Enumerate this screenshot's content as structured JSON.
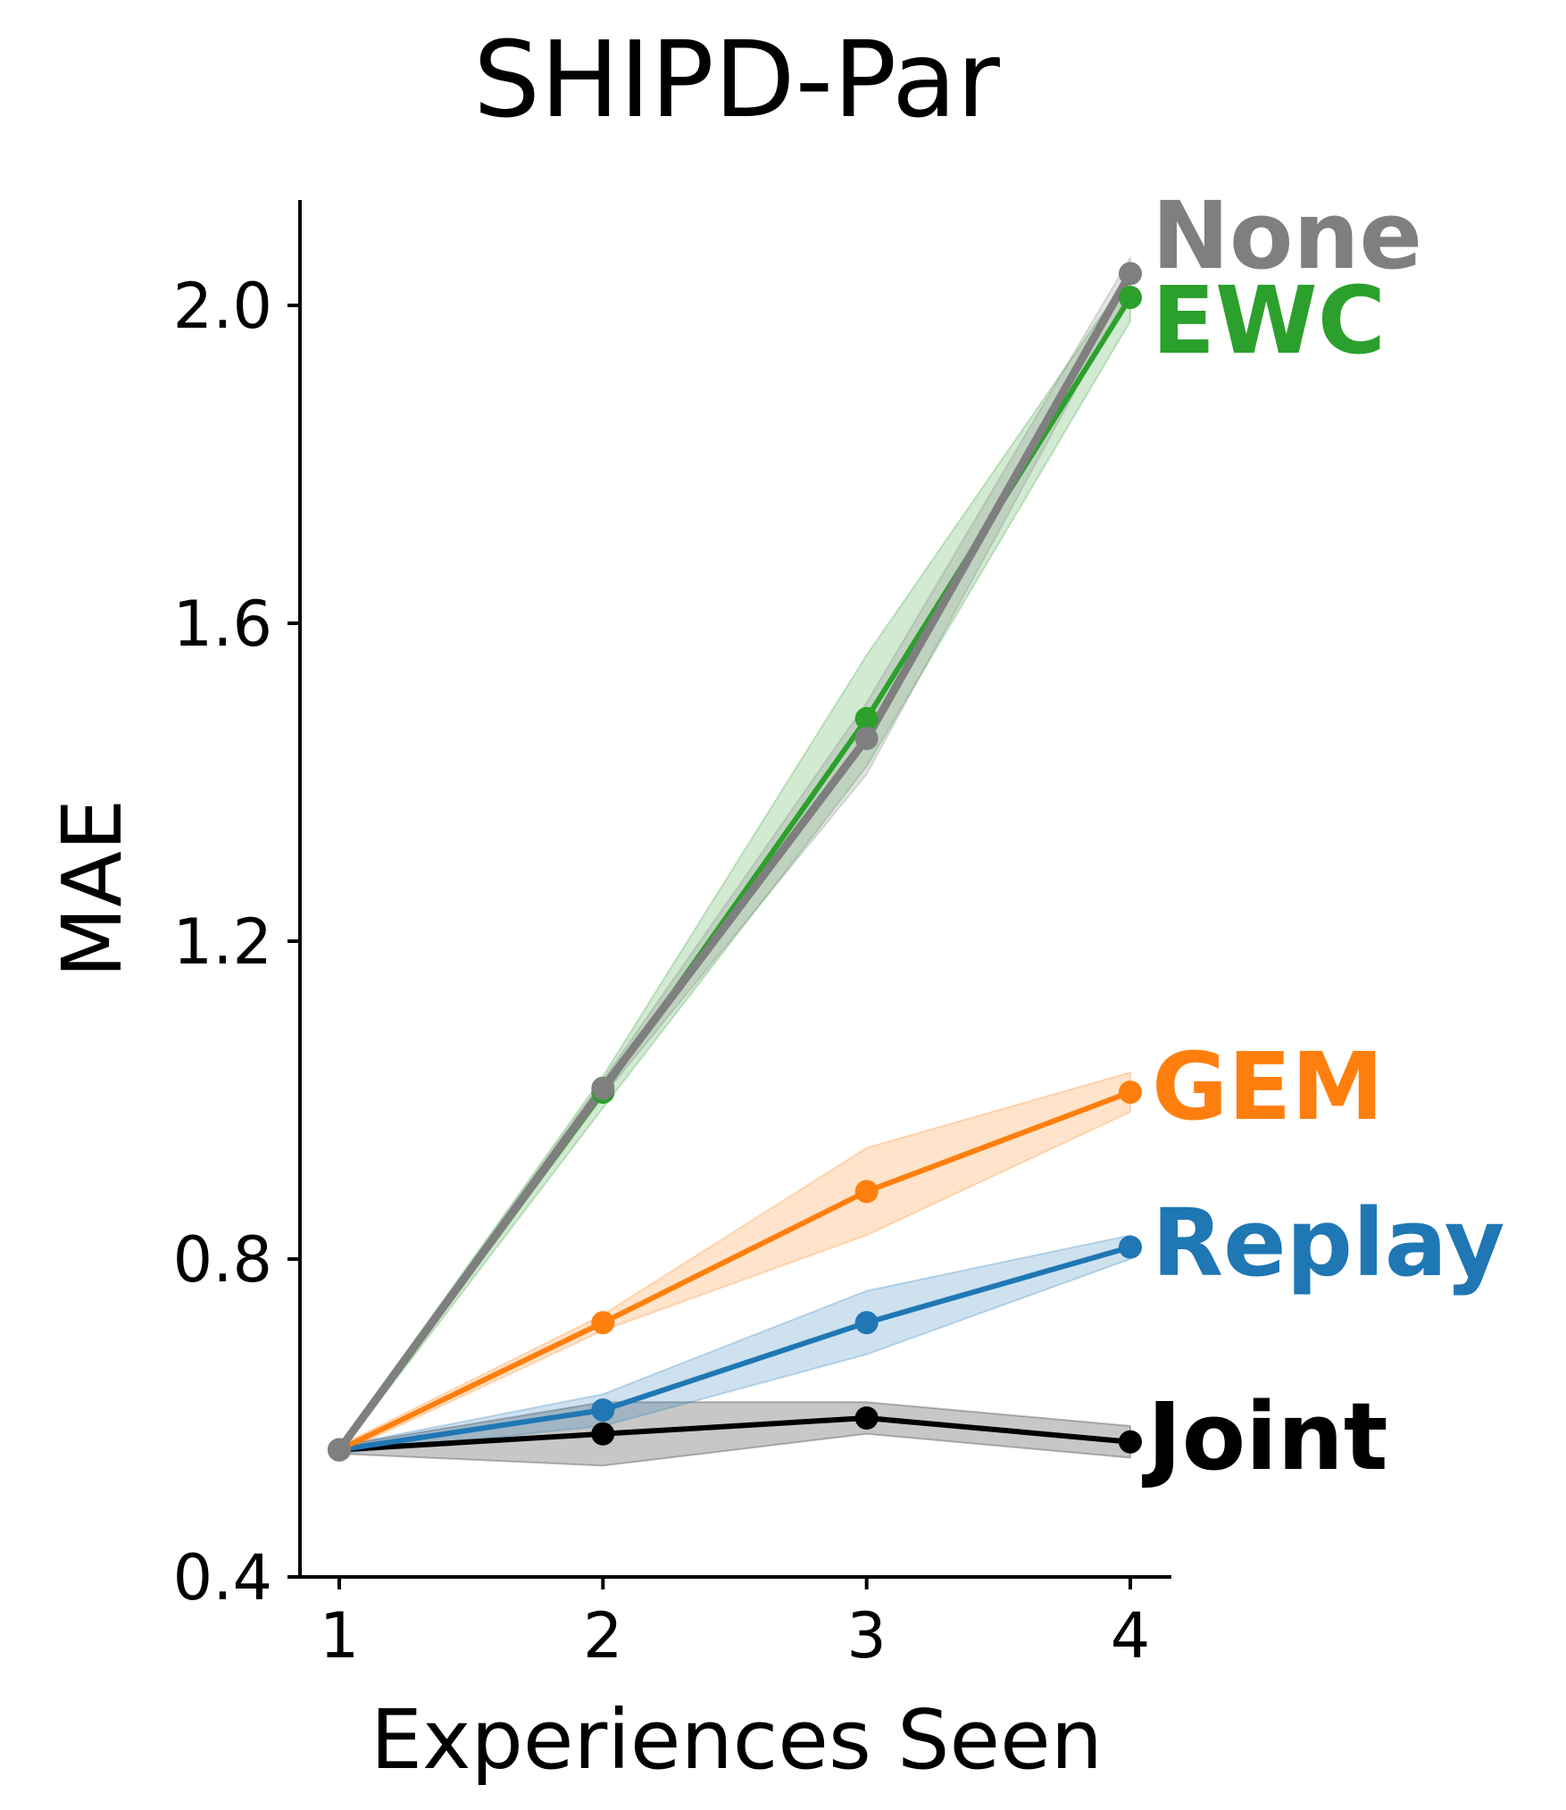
{
  "chart_data": {
    "type": "line",
    "title": "SHIPD-Par",
    "xlabel": "Experiences Seen",
    "ylabel": "MAE",
    "x": [
      1,
      2,
      3,
      4
    ],
    "xticks": [
      "1",
      "2",
      "3",
      "4"
    ],
    "yticks": [
      "0.4",
      "0.8",
      "1.2",
      "1.6",
      "2.0"
    ],
    "ylim": [
      0.4,
      2.13
    ],
    "xlim": [
      0.85,
      4.15
    ],
    "grid": false,
    "legend": "inline labels at line ends",
    "series": [
      {
        "name": "Joint",
        "color": "#000000",
        "values": [
          0.56,
          0.58,
          0.6,
          0.57
        ],
        "lower": [
          0.555,
          0.54,
          0.58,
          0.55
        ],
        "upper": [
          0.565,
          0.62,
          0.62,
          0.59
        ]
      },
      {
        "name": "Replay",
        "color": "#1f77b4",
        "values": [
          0.56,
          0.61,
          0.72,
          0.815
        ],
        "lower": [
          0.555,
          0.59,
          0.68,
          0.8
        ],
        "upper": [
          0.565,
          0.63,
          0.76,
          0.83
        ]
      },
      {
        "name": "GEM",
        "color": "#ff7f0e",
        "values": [
          0.56,
          0.72,
          0.885,
          1.01
        ],
        "lower": [
          0.555,
          0.71,
          0.83,
          0.985
        ],
        "upper": [
          0.565,
          0.73,
          0.94,
          1.035
        ]
      },
      {
        "name": "EWC",
        "color": "#2ca02c",
        "values": [
          0.56,
          1.01,
          1.48,
          2.01
        ],
        "lower": [
          0.555,
          0.99,
          1.42,
          1.98
        ],
        "upper": [
          0.565,
          1.03,
          1.56,
          2.04
        ]
      },
      {
        "name": "None",
        "color": "#7f7f7f",
        "values": [
          0.56,
          1.015,
          1.455,
          2.04
        ],
        "lower": [
          0.555,
          1.005,
          1.41,
          2.02
        ],
        "upper": [
          0.565,
          1.025,
          1.5,
          2.06
        ]
      }
    ]
  }
}
